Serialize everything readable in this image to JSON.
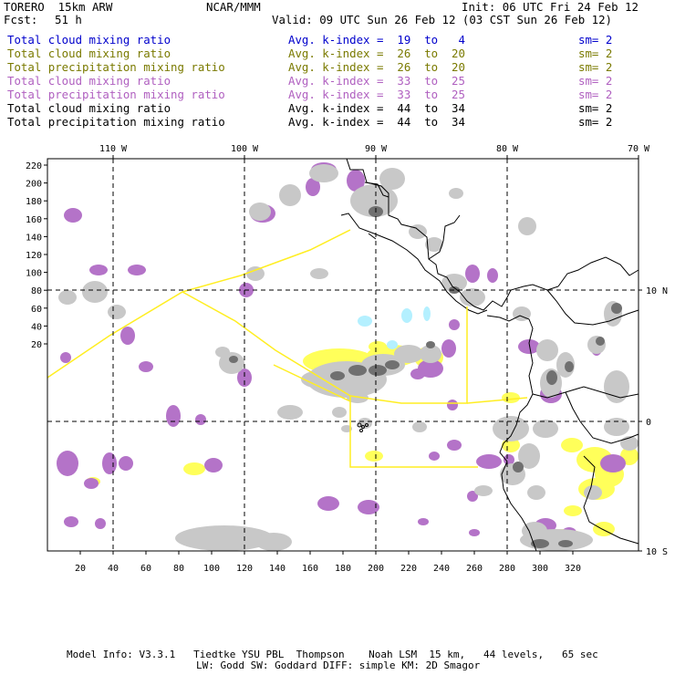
{
  "header": {
    "model": "TORERO  15km ARW",
    "org": "NCAR/MMM",
    "init": "Init: 06 UTC Fri 24 Feb 12",
    "fcst_label": "Fcst:",
    "fcst_value": "51 h",
    "valid": "Valid: 09 UTC Sun 26 Feb 12 (03 CST Sun 26 Feb 12)"
  },
  "legend": [
    {
      "field": "Total cloud mixing ratio",
      "kindex": "Avg. k-index =  19  to   4",
      "sm": "sm= 2",
      "color": "#0000cc"
    },
    {
      "field": "Total cloud mixing ratio",
      "kindex": "Avg. k-index =  26  to  20",
      "sm": "sm= 2",
      "color": "#7a7a00"
    },
    {
      "field": "Total precipitation mixing ratio",
      "kindex": "Avg. k-index =  26  to  20",
      "sm": "sm= 2",
      "color": "#7a7a00"
    },
    {
      "field": "Total cloud mixing ratio",
      "kindex": "Avg. k-index =  33  to  25",
      "sm": "sm= 2",
      "color": "#b060c0"
    },
    {
      "field": "Total precipitation mixing ratio",
      "kindex": "Avg. k-index =  33  to  25",
      "sm": "sm= 2",
      "color": "#b060c0"
    },
    {
      "field": "Total cloud mixing ratio",
      "kindex": "Avg. k-index =  44  to  34",
      "sm": "sm= 2",
      "color": "#000000"
    },
    {
      "field": "Total precipitation mixing ratio",
      "kindex": "Avg. k-index =  44  to  34",
      "sm": "sm= 2",
      "color": "#000000"
    }
  ],
  "map": {
    "lon_labels": [
      "110 W",
      "100 W",
      "90 W",
      "80 W",
      "70 W"
    ],
    "lat_labels": [
      "10 N",
      "0",
      "10 S"
    ],
    "y_ticks": [
      "220",
      "200",
      "180",
      "160",
      "140",
      "120",
      "100",
      "80",
      "60",
      "40",
      "20"
    ],
    "x_ticks": [
      "20",
      "40",
      "60",
      "80",
      "100",
      "120",
      "140",
      "160",
      "180",
      "200",
      "220",
      "240",
      "260",
      "280",
      "300",
      "320"
    ],
    "colors": {
      "cloud_light": "#c8c8c8",
      "cloud_dark": "#707070",
      "purple": "#b473c8",
      "yellow": "#ffff5a",
      "cyan": "#b4f0ff",
      "boundary": "#ffee22",
      "coast": "#000000"
    }
  },
  "footer": {
    "line1": "Model Info: V3.3.1   Tiedtke YSU PBL  Thompson    Noah LSM  15 km,   44 levels,   65 sec",
    "line2": "LW: Godd SW: Goddard DIFF: simple KM: 2D Smagor"
  }
}
